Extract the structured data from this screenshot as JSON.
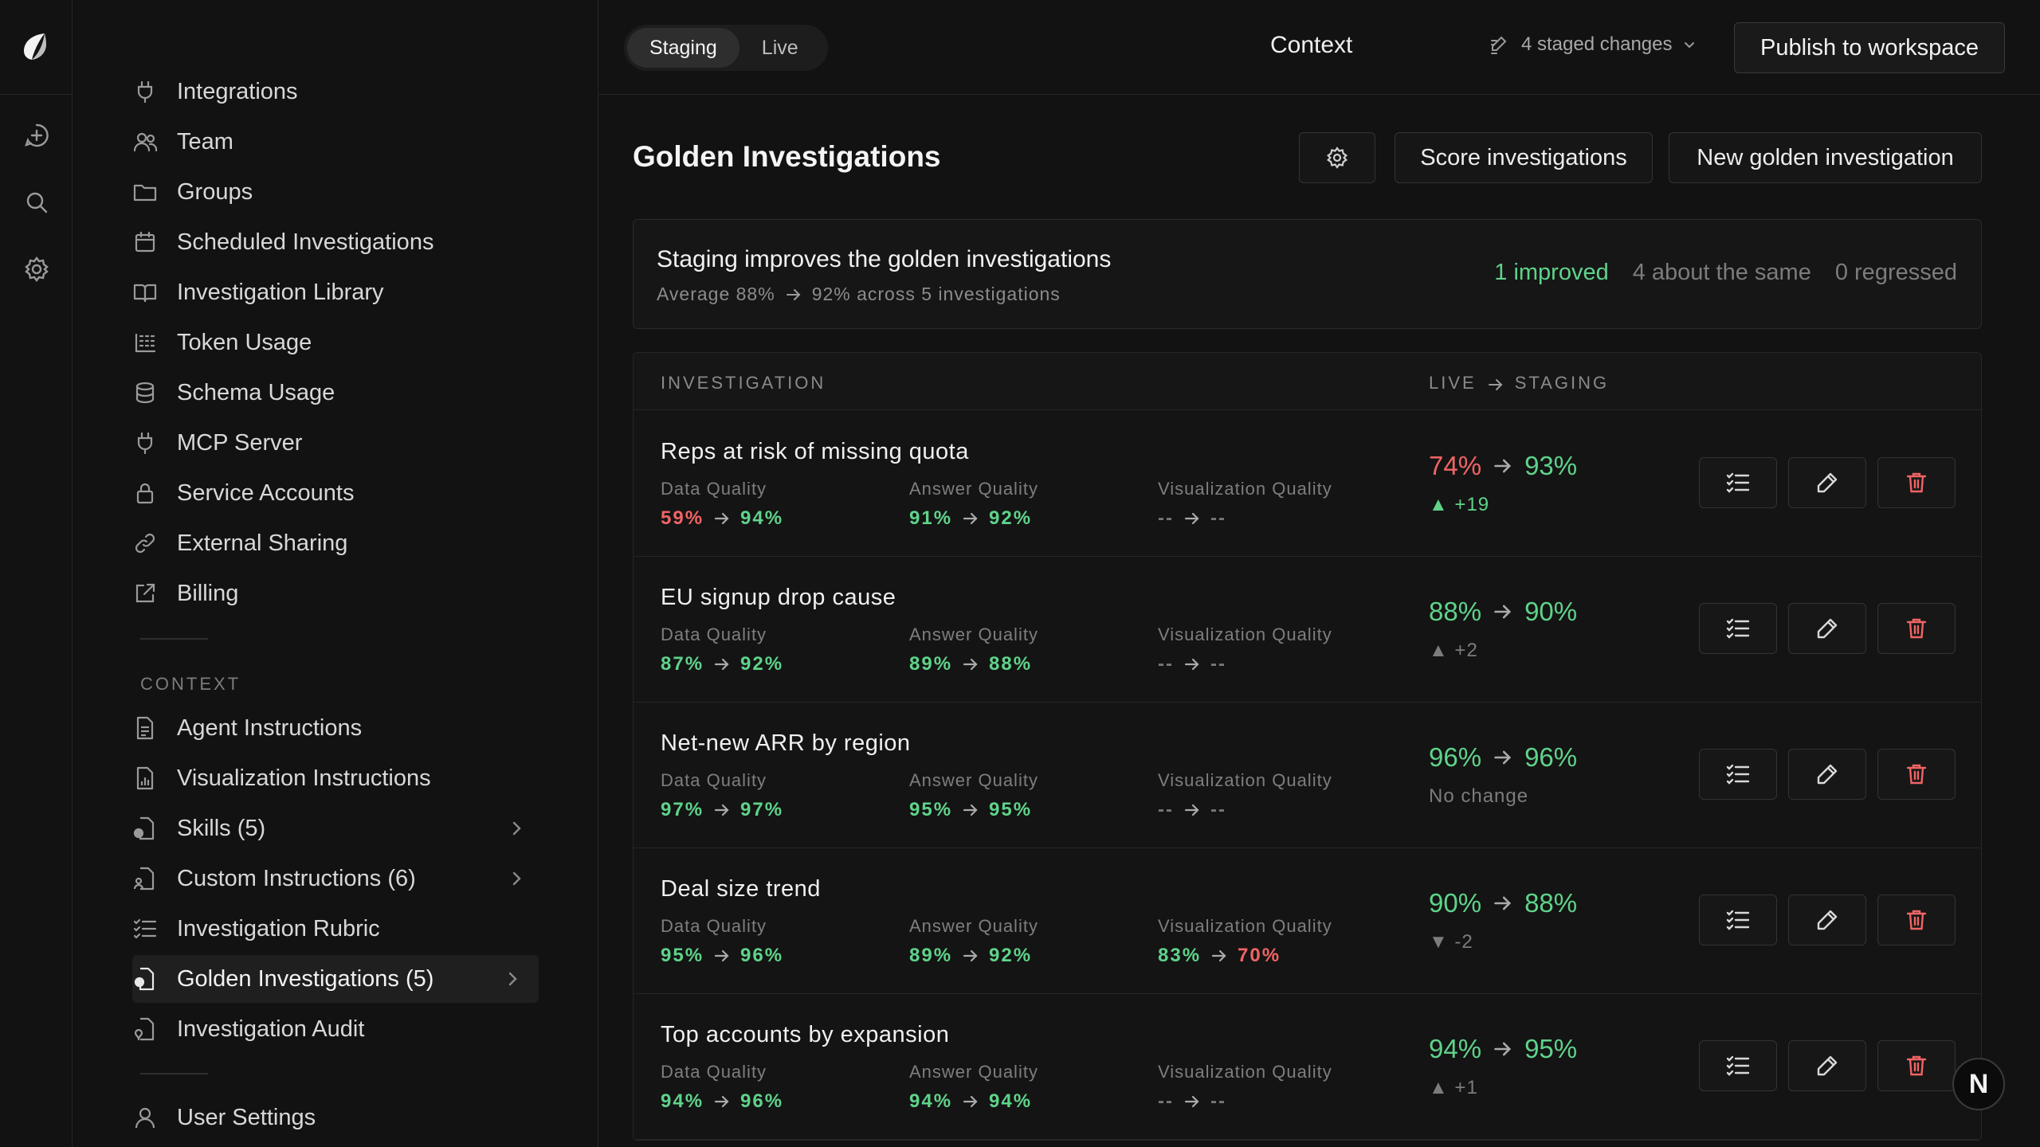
{
  "nav": {
    "items": [
      {
        "label": "Integrations",
        "icon": "plug-icon"
      },
      {
        "label": "Team",
        "icon": "users-icon"
      },
      {
        "label": "Groups",
        "icon": "folder-icon"
      },
      {
        "label": "Scheduled Investigations",
        "icon": "calendar-icon"
      },
      {
        "label": "Investigation Library",
        "icon": "book-icon"
      },
      {
        "label": "Token Usage",
        "icon": "token-grid-icon"
      },
      {
        "label": "Schema Usage",
        "icon": "database-icon"
      },
      {
        "label": "MCP Server",
        "icon": "plug-icon"
      },
      {
        "label": "Service Accounts",
        "icon": "lock-icon"
      },
      {
        "label": "External Sharing",
        "icon": "link-icon"
      },
      {
        "label": "Billing",
        "icon": "external-link-icon"
      }
    ],
    "section_label": "CONTEXT",
    "context_items": [
      {
        "label": "Agent Instructions",
        "icon": "document-icon"
      },
      {
        "label": "Visualization Instructions",
        "icon": "chart-document-icon"
      },
      {
        "label": "Skills (5)",
        "icon": "skill-document-icon"
      },
      {
        "label": "Custom Instructions (6)",
        "icon": "person-document-icon"
      },
      {
        "label": "Investigation Rubric",
        "icon": "checklist-icon"
      },
      {
        "label": "Golden Investigations (5)",
        "icon": "golden-document-icon"
      },
      {
        "label": "Investigation Audit",
        "icon": "audit-document-icon"
      }
    ],
    "user_settings": "User Settings"
  },
  "topbar": {
    "tabs": [
      "Staging",
      "Live"
    ],
    "active_tab": "Staging",
    "title": "Context",
    "staged_changes": "4 staged changes",
    "publish": "Publish to workspace"
  },
  "main": {
    "title": "Golden Investigations",
    "score_button": "Score investigations",
    "new_button": "New golden investigation",
    "summary": {
      "title": "Staging improves the golden investigations",
      "sub_before": "Average 88%",
      "sub_after": "92% across 5 investigations",
      "improved": "1 improved",
      "same": "4 about the same",
      "regressed": "0 regressed"
    },
    "table": {
      "col_investigation": "INVESTIGATION",
      "col_live": "LIVE",
      "col_staging": "STAGING",
      "metric_labels": [
        "Data Quality",
        "Answer Quality",
        "Visualization Quality"
      ],
      "rows": [
        {
          "name": "Reps at risk of missing quota",
          "data": [
            "59%",
            "94%"
          ],
          "answer": [
            "91%",
            "92%"
          ],
          "viz": [
            "--",
            "--"
          ],
          "live": "74%",
          "staging": "93%",
          "delta": "▲ +19"
        },
        {
          "name": "EU signup drop cause",
          "data": [
            "87%",
            "92%"
          ],
          "answer": [
            "89%",
            "88%"
          ],
          "viz": [
            "--",
            "--"
          ],
          "live": "88%",
          "staging": "90%",
          "delta": "▲ +2"
        },
        {
          "name": "Net-new ARR by region",
          "data": [
            "97%",
            "97%"
          ],
          "answer": [
            "95%",
            "95%"
          ],
          "viz": [
            "--",
            "--"
          ],
          "live": "96%",
          "staging": "96%",
          "delta": "No change"
        },
        {
          "name": "Deal size trend",
          "data": [
            "95%",
            "96%"
          ],
          "answer": [
            "89%",
            "92%"
          ],
          "viz": [
            "83%",
            "70%"
          ],
          "live": "90%",
          "staging": "88%",
          "delta": "▼ -2"
        },
        {
          "name": "Top accounts by expansion",
          "data": [
            "94%",
            "96%"
          ],
          "answer": [
            "94%",
            "94%"
          ],
          "viz": [
            "--",
            "--"
          ],
          "live": "94%",
          "staging": "95%",
          "delta": "▲ +1"
        }
      ]
    }
  },
  "avatar_initial": "N",
  "colors": {
    "good": "#5fd38a",
    "bad": "#f06464",
    "muted": "#7c7c7c"
  }
}
